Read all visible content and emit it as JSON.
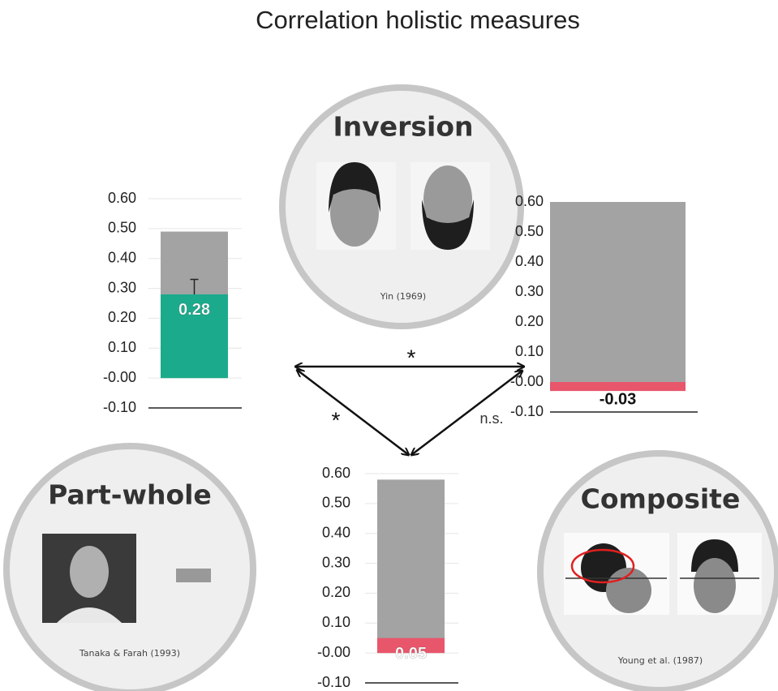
{
  "title": "Correlation holistic measures",
  "circles": [
    {
      "label": "Inversion",
      "caption": "Yin (1969)"
    },
    {
      "label": "Part-whole",
      "caption": "Tanaka & Farah (1993)"
    },
    {
      "label": "Composite",
      "caption": "Young et al. (1987)"
    }
  ],
  "links": [
    {
      "label": "*"
    },
    {
      "label": "*"
    },
    {
      "label": "n.s."
    }
  ],
  "chart_data": [
    {
      "type": "bar",
      "ylim": [
        -0.1,
        0.6
      ],
      "grid": true,
      "yticks": [
        {
          "value": 0.6,
          "label": "0.60"
        },
        {
          "value": 0.5,
          "label": "0.50"
        },
        {
          "value": 0.4,
          "label": "0.40"
        },
        {
          "value": 0.3,
          "label": "0.30"
        },
        {
          "value": 0.2,
          "label": "0.20"
        },
        {
          "value": 0.1,
          "label": "0.10"
        },
        {
          "value": 0,
          "label": "-0.00"
        },
        {
          "value": -0.1,
          "label": "-0.10"
        }
      ],
      "series": [
        {
          "color": "#a3a3a3",
          "values": [
            0.49
          ]
        },
        {
          "color": "#1bab8c",
          "values": [
            0.28
          ],
          "errors": [
            0.05
          ]
        }
      ]
    },
    {
      "type": "bar",
      "ylim": [
        -0.1,
        0.6
      ],
      "grid": false,
      "yticks": [
        {
          "value": 0.6,
          "label": "0.60"
        },
        {
          "value": 0.5,
          "label": "0.50"
        },
        {
          "value": 0.4,
          "label": "0.40"
        },
        {
          "value": 0.3,
          "label": "0.30"
        },
        {
          "value": 0.2,
          "label": "0.20"
        },
        {
          "value": 0.1,
          "label": "0.10"
        },
        {
          "value": 0,
          "label": "-0.00"
        },
        {
          "value": -0.1,
          "label": "-0.10"
        }
      ],
      "series": [
        {
          "color": "#a3a3a3",
          "values": [
            0.6
          ]
        },
        {
          "color": "#e8566b",
          "values": [
            -0.03
          ]
        }
      ]
    },
    {
      "type": "bar",
      "ylim": [
        -0.1,
        0.6
      ],
      "grid": true,
      "yticks": [
        {
          "value": 0.6,
          "label": "0.60"
        },
        {
          "value": 0.5,
          "label": "0.50"
        },
        {
          "value": 0.4,
          "label": "0.40"
        },
        {
          "value": 0.3,
          "label": "0.30"
        },
        {
          "value": 0.2,
          "label": "0.20"
        },
        {
          "value": 0.1,
          "label": "0.10"
        },
        {
          "value": 0,
          "label": "-0.00"
        },
        {
          "value": -0.1,
          "label": "-0.10"
        }
      ],
      "series": [
        {
          "color": "#a3a3a3",
          "values": [
            0.58
          ]
        },
        {
          "color": "#e8566b",
          "values": [
            0.05
          ]
        }
      ]
    }
  ]
}
